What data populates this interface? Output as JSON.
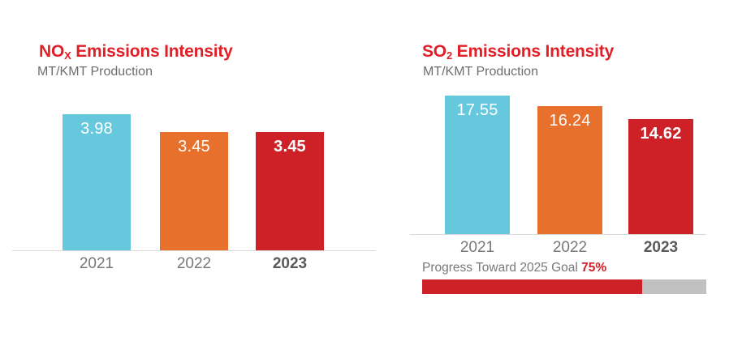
{
  "colors": {
    "title_red": "#e01f26",
    "bar_cyan": "#65c8dc",
    "bar_orange": "#e8702d",
    "bar_red": "#cd2127",
    "subtitle_gray": "#6d6e71",
    "year_gray": "#77787b",
    "year_bold_gray": "#58595b",
    "axis_gray": "#d9d9d9",
    "progress_track_gray": "#c1c1c1",
    "value_text": "#ffffff"
  },
  "charts": [
    {
      "title": {
        "base": "NO",
        "subscript": "X",
        "rest": " Emissions Intensity"
      },
      "subtitle": "MT/KMT Production"
    },
    {
      "title": {
        "base": "SO",
        "subscript": "2",
        "rest": " Emissions Intensity"
      },
      "subtitle": "MT/KMT Production"
    }
  ],
  "chart_data": [
    {
      "type": "bar",
      "title": "NOx Emissions Intensity",
      "ylabel": "MT/KMT Production",
      "xlabel": "",
      "categories": [
        "2021",
        "2022",
        "2023"
      ],
      "values": [
        3.98,
        3.45,
        3.45
      ],
      "value_labels": [
        "3.98",
        "3.45",
        "3.45"
      ],
      "bar_colors": [
        "#65c8dc",
        "#e8702d",
        "#cd2127"
      ],
      "grid": false,
      "legend": false
    },
    {
      "type": "bar",
      "title": "SO2 Emissions Intensity",
      "ylabel": "MT/KMT Production",
      "xlabel": "",
      "categories": [
        "2021",
        "2022",
        "2023"
      ],
      "values": [
        17.55,
        16.24,
        14.62
      ],
      "value_labels": [
        "17.55",
        "16.24",
        "14.62"
      ],
      "bar_colors": [
        "#65c8dc",
        "#e8702d",
        "#cd2127"
      ],
      "grid": false,
      "legend": false,
      "progress": {
        "label": "Progress Toward 2025 Goal ",
        "percent_label": "75%",
        "percent": 75,
        "fill_ratio": 0.775
      }
    }
  ]
}
